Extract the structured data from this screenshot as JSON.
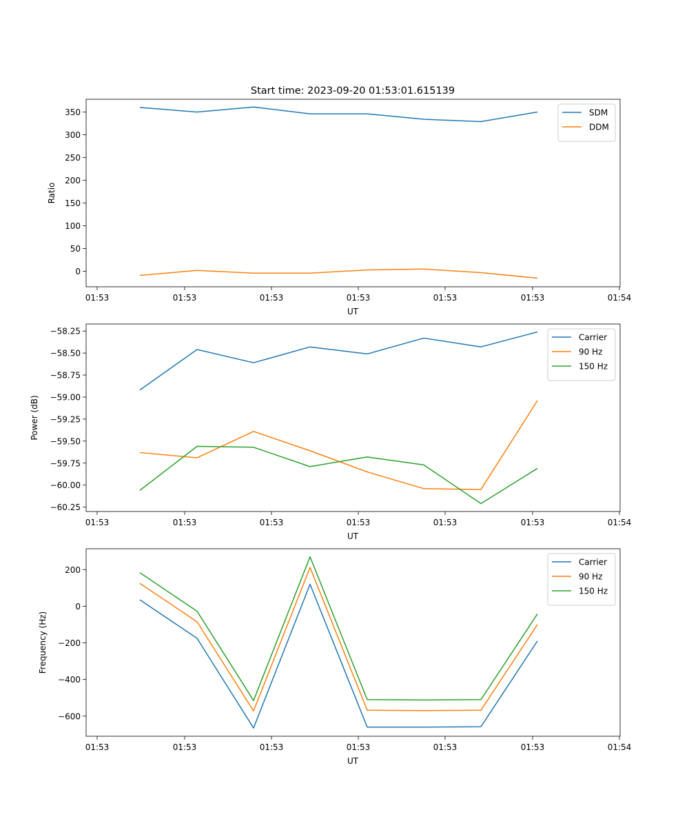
{
  "figure": {
    "title": "Start time: 2023-09-20 01:53:01.615139"
  },
  "chart_data": [
    {
      "type": "line",
      "title": "Start time: 2023-09-20 01:53:01.615139",
      "xlabel": "UT",
      "ylabel": "Ratio",
      "x_tick_labels": [
        "01:53",
        "01:53",
        "01:53",
        "01:53",
        "01:53",
        "01:53",
        "01:53",
        "01:54"
      ],
      "y_ticks": [
        0,
        50,
        100,
        150,
        200,
        250,
        300,
        350
      ],
      "y_tick_labels": [
        "0",
        "50",
        "100",
        "150",
        "200",
        "250",
        "300",
        "350"
      ],
      "ylim": [
        -34,
        378
      ],
      "legend": "top-right",
      "series": [
        {
          "name": "SDM",
          "color": "#1f77b4",
          "values": [
            360,
            350,
            361,
            346,
            346,
            334,
            329,
            350
          ]
        },
        {
          "name": "DDM",
          "color": "#ff7f0e",
          "values": [
            -9,
            2,
            -4,
            -4,
            3,
            5,
            -3,
            -15
          ]
        }
      ]
    },
    {
      "type": "line",
      "title": "",
      "xlabel": "UT",
      "ylabel": "Power (dB)",
      "x_tick_labels": [
        "01:53",
        "01:53",
        "01:53",
        "01:53",
        "01:53",
        "01:53",
        "01:53",
        "01:54"
      ],
      "y_ticks": [
        -58.25,
        -58.5,
        -58.75,
        -59.0,
        -59.25,
        -59.5,
        -59.75,
        -60.0,
        -60.25
      ],
      "y_tick_labels": [
        "−58.25",
        "−58.50",
        "−58.75",
        "−59.00",
        "−59.25",
        "−59.50",
        "−59.75",
        "−60.00",
        "−60.25"
      ],
      "ylim": [
        -60.3,
        -58.17
      ],
      "legend": "top-right",
      "series": [
        {
          "name": "Carrier",
          "color": "#1f77b4",
          "values": [
            -58.92,
            -58.46,
            -58.61,
            -58.43,
            -58.51,
            -58.33,
            -58.43,
            -58.26
          ]
        },
        {
          "name": "90 Hz",
          "color": "#ff7f0e",
          "values": [
            -59.63,
            -59.69,
            -59.39,
            -59.61,
            -59.85,
            -60.04,
            -60.05,
            -59.04
          ]
        },
        {
          "name": "150 Hz",
          "color": "#2ca02c",
          "values": [
            -60.06,
            -59.56,
            -59.57,
            -59.79,
            -59.68,
            -59.77,
            -60.21,
            -59.81
          ]
        }
      ]
    },
    {
      "type": "line",
      "title": "",
      "xlabel": "UT",
      "ylabel": "Frequency (Hz)",
      "x_tick_labels": [
        "01:53",
        "01:53",
        "01:53",
        "01:53",
        "01:53",
        "01:53",
        "01:53",
        "01:54"
      ],
      "y_ticks": [
        200,
        0,
        -200,
        -400,
        -600
      ],
      "y_tick_labels": [
        "200",
        "0",
        "−200",
        "−400",
        "−600"
      ],
      "ylim": [
        -710,
        314
      ],
      "legend": "top-right",
      "series": [
        {
          "name": "Carrier",
          "color": "#1f77b4",
          "values": [
            35,
            -175,
            -665,
            120,
            -660,
            -660,
            -658,
            -190
          ]
        },
        {
          "name": "90 Hz",
          "color": "#ff7f0e",
          "values": [
            125,
            -85,
            -572,
            212,
            -568,
            -570,
            -568,
            -100
          ]
        },
        {
          "name": "150 Hz",
          "color": "#2ca02c",
          "values": [
            183,
            -27,
            -515,
            270,
            -510,
            -512,
            -510,
            -42
          ]
        }
      ]
    }
  ]
}
